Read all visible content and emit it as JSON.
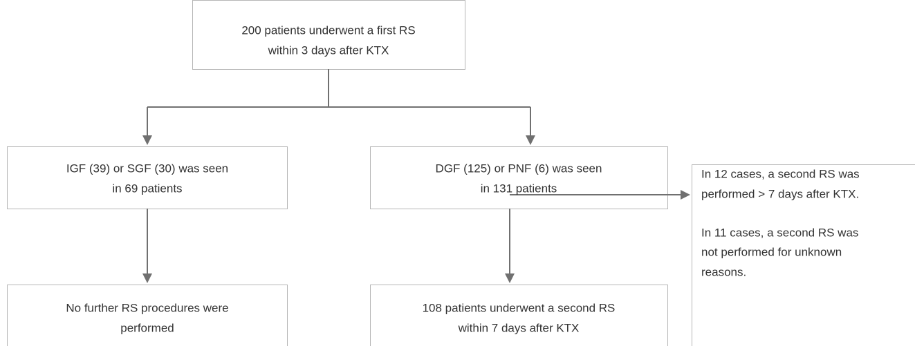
{
  "nodes": [
    {
      "lines": [
        "200 patients underwent a first RS",
        "within 3 days after KTX"
      ]
    },
    {
      "lines": [
        "IGF (39) or SGF (30) was seen",
        "in 69 patients"
      ]
    },
    {
      "lines": [
        "DGF (125) or PNF (6) was seen",
        "in 131 patients"
      ]
    },
    {
      "lines": [
        "No further RS procedures were",
        "performed"
      ]
    },
    {
      "lines": [
        "108 patients underwent a second RS",
        "within 7 days after KTX"
      ]
    },
    {
      "lines": [
        "In 12 cases, a second RS was",
        "performed > 7 days after KTX.",
        "In 11 cases, a second RS was",
        "not performed for unknown",
        "reasons."
      ]
    }
  ]
}
